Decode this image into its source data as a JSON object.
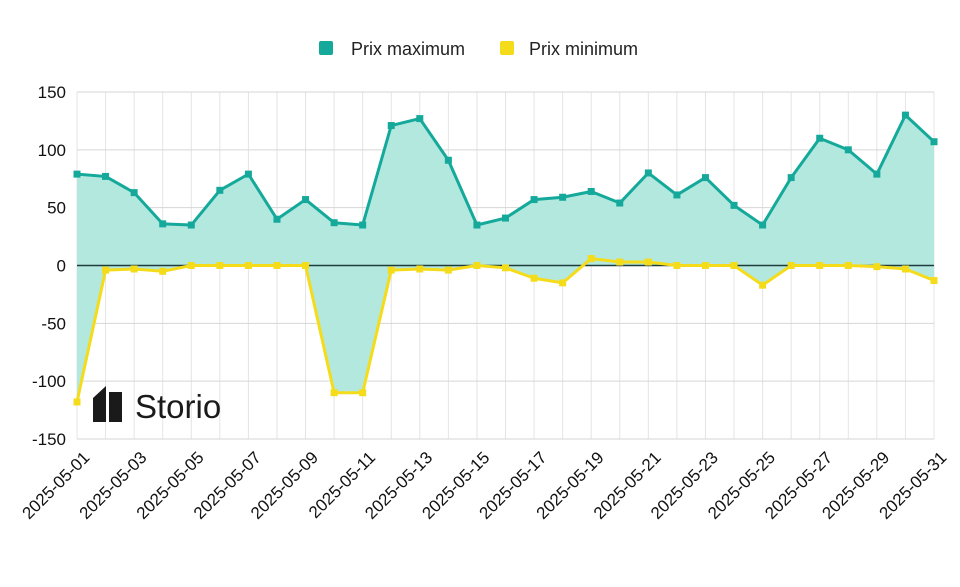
{
  "chart_data": {
    "type": "line",
    "x": [
      "2025-05-01",
      "2025-05-02",
      "2025-05-03",
      "2025-05-04",
      "2025-05-05",
      "2025-05-06",
      "2025-05-07",
      "2025-05-08",
      "2025-05-09",
      "2025-05-10",
      "2025-05-11",
      "2025-05-12",
      "2025-05-13",
      "2025-05-14",
      "2025-05-15",
      "2025-05-16",
      "2025-05-17",
      "2025-05-18",
      "2025-05-19",
      "2025-05-20",
      "2025-05-21",
      "2025-05-22",
      "2025-05-23",
      "2025-05-24",
      "2025-05-25",
      "2025-05-26",
      "2025-05-27",
      "2025-05-28",
      "2025-05-29",
      "2025-05-30",
      "2025-05-31"
    ],
    "x_tick_labels": [
      "2025-05-01",
      "2025-05-03",
      "2025-05-05",
      "2025-05-07",
      "2025-05-09",
      "2025-05-11",
      "2025-05-13",
      "2025-05-15",
      "2025-05-17",
      "2025-05-19",
      "2025-05-21",
      "2025-05-23",
      "2025-05-25",
      "2025-05-27",
      "2025-05-29",
      "2025-05-31"
    ],
    "y_ticks": [
      150,
      100,
      50,
      0,
      -50,
      -100,
      -150
    ],
    "ylim": [
      -150,
      150
    ],
    "grid": true,
    "legend_position": "top-center",
    "series": [
      {
        "name": "Prix maximum",
        "color": "#14a99a",
        "fill": "#b3e8df",
        "values": [
          79,
          77,
          63,
          36,
          35,
          65,
          79,
          40,
          57,
          37,
          35,
          121,
          127,
          91,
          35,
          41,
          57,
          59,
          64,
          54,
          80,
          61,
          76,
          52,
          35,
          76,
          110,
          100,
          79,
          130,
          107
        ]
      },
      {
        "name": "Prix minimum",
        "color": "#f4dc1a",
        "values": [
          -118,
          -4,
          -3,
          -5,
          0,
          0,
          0,
          0,
          0,
          -110,
          -110,
          -4,
          -3,
          -4,
          0,
          -2,
          -11,
          -15,
          6,
          3,
          3,
          0,
          0,
          0,
          -17,
          0,
          0,
          0,
          -1,
          -3,
          -13
        ]
      }
    ]
  },
  "logo": {
    "text": "Storio"
  }
}
